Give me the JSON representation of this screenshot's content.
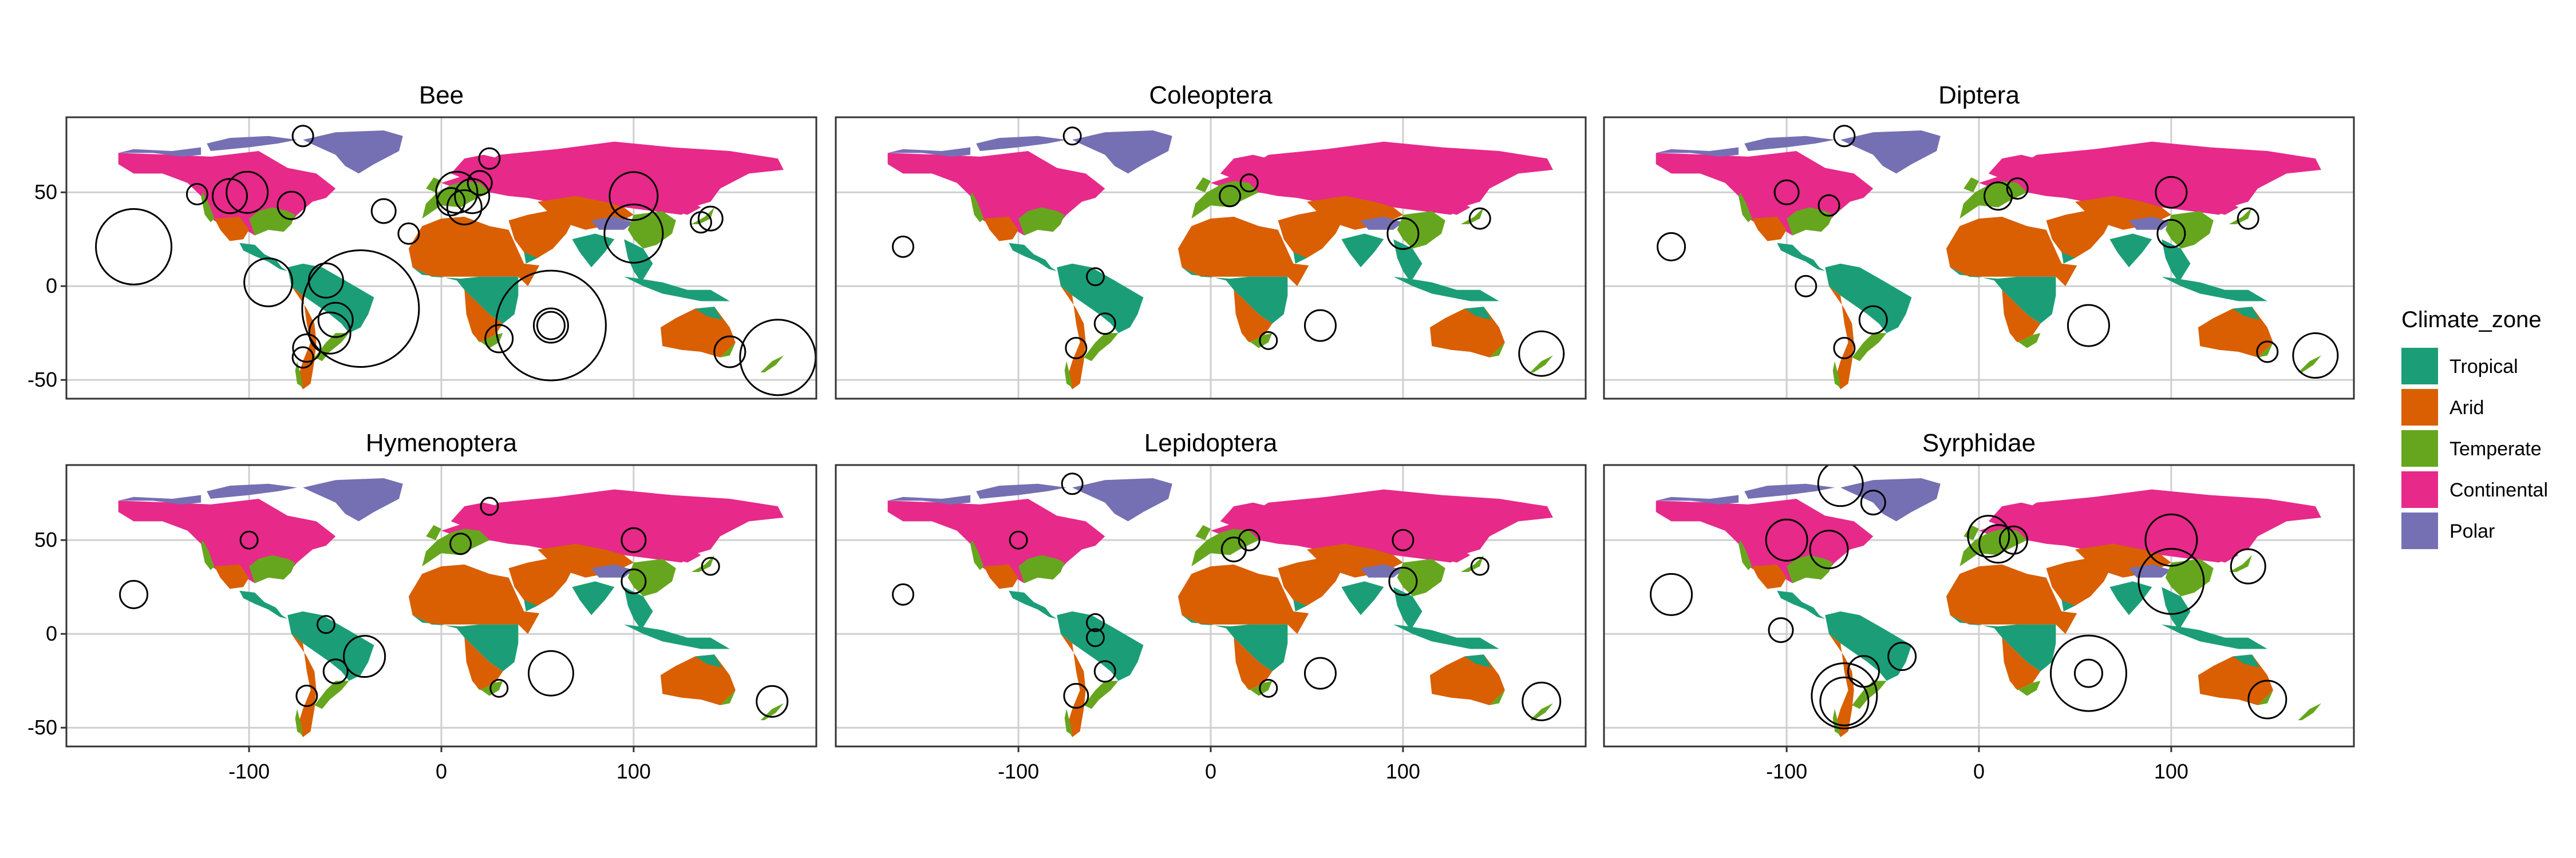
{
  "chart_data": {
    "type": "map",
    "facets": [
      "Bee",
      "Coleoptera",
      "Diptera",
      "Hymenoptera",
      "Lepidoptera",
      "Syrphidae"
    ],
    "x_ticks": [
      -100,
      0,
      100
    ],
    "y_ticks": [
      50,
      0,
      -50
    ],
    "xlim": [
      -195,
      195
    ],
    "ylim": [
      -60,
      90
    ],
    "grid": true,
    "legend": {
      "title": "Climate_zone",
      "position": "right",
      "entries": [
        {
          "label": "Tropical",
          "color": "#1B9E77"
        },
        {
          "label": "Arid",
          "color": "#D95F02"
        },
        {
          "label": "Temperate",
          "color": "#66A61E"
        },
        {
          "label": "Continental",
          "color": "#E7298A"
        },
        {
          "label": "Polar",
          "color": "#7570B3"
        }
      ]
    },
    "point_layers": {
      "Bee": [
        [
          -160,
          21,
          1.0
        ],
        [
          -101,
          50,
          0.5
        ],
        [
          -110,
          48,
          0.4
        ],
        [
          -127,
          49,
          0.2
        ],
        [
          -78,
          43,
          0.3
        ],
        [
          -72,
          80,
          0.2
        ],
        [
          -90,
          2,
          0.6
        ],
        [
          -42,
          -12,
          1.6
        ],
        [
          -58,
          -25,
          0.5
        ],
        [
          -55,
          -18,
          0.4
        ],
        [
          -60,
          3,
          0.4
        ],
        [
          -70,
          -33,
          0.3
        ],
        [
          -72,
          -38,
          0.2
        ],
        [
          -30,
          40,
          0.25
        ],
        [
          -17,
          28,
          0.2
        ],
        [
          8,
          50,
          0.5
        ],
        [
          12,
          42,
          0.4
        ],
        [
          5,
          45,
          0.3
        ],
        [
          16,
          48,
          0.4
        ],
        [
          20,
          55,
          0.25
        ],
        [
          25,
          68,
          0.2
        ],
        [
          30,
          -28,
          0.3
        ],
        [
          57,
          -21,
          1.5
        ],
        [
          57,
          -21,
          0.4
        ],
        [
          57,
          -21,
          0.3
        ],
        [
          100,
          48,
          0.6
        ],
        [
          100,
          28,
          0.75
        ],
        [
          140,
          36,
          0.25
        ],
        [
          135,
          34,
          0.2
        ],
        [
          150,
          -35,
          0.35
        ],
        [
          175,
          -38,
          1.0
        ]
      ],
      "Coleoptera": [
        [
          -160,
          21,
          0.2
        ],
        [
          -72,
          80,
          0.15
        ],
        [
          -60,
          5,
          0.15
        ],
        [
          -55,
          -20,
          0.2
        ],
        [
          -70,
          -33,
          0.2
        ],
        [
          10,
          48,
          0.2
        ],
        [
          20,
          55,
          0.15
        ],
        [
          30,
          -29,
          0.15
        ],
        [
          57,
          -21,
          0.35
        ],
        [
          100,
          28,
          0.35
        ],
        [
          140,
          36,
          0.2
        ],
        [
          172,
          -36,
          0.55
        ]
      ],
      "Diptera": [
        [
          -160,
          21,
          0.3
        ],
        [
          -100,
          50,
          0.25
        ],
        [
          -78,
          43,
          0.2
        ],
        [
          -70,
          80,
          0.2
        ],
        [
          -90,
          0,
          0.2
        ],
        [
          -55,
          -18,
          0.3
        ],
        [
          -70,
          -33,
          0.2
        ],
        [
          10,
          48,
          0.3
        ],
        [
          20,
          52,
          0.2
        ],
        [
          57,
          -21,
          0.5
        ],
        [
          100,
          50,
          0.35
        ],
        [
          100,
          28,
          0.3
        ],
        [
          140,
          36,
          0.2
        ],
        [
          150,
          -35,
          0.2
        ],
        [
          175,
          -37,
          0.55
        ]
      ],
      "Hymenoptera": [
        [
          -160,
          21,
          0.3
        ],
        [
          -100,
          50,
          0.15
        ],
        [
          -60,
          5,
          0.15
        ],
        [
          -40,
          -12,
          0.5
        ],
        [
          -55,
          -20,
          0.25
        ],
        [
          -70,
          -33,
          0.2
        ],
        [
          10,
          48,
          0.2
        ],
        [
          25,
          68,
          0.15
        ],
        [
          30,
          -29,
          0.15
        ],
        [
          57,
          -21,
          0.55
        ],
        [
          100,
          50,
          0.25
        ],
        [
          100,
          28,
          0.25
        ],
        [
          140,
          36,
          0.15
        ],
        [
          172,
          -36,
          0.35
        ]
      ],
      "Lepidoptera": [
        [
          -160,
          21,
          0.2
        ],
        [
          -100,
          50,
          0.15
        ],
        [
          -72,
          80,
          0.2
        ],
        [
          -60,
          -2,
          0.15
        ],
        [
          -60,
          6,
          0.15
        ],
        [
          -55,
          -20,
          0.2
        ],
        [
          -70,
          -33,
          0.25
        ],
        [
          12,
          45,
          0.25
        ],
        [
          20,
          50,
          0.2
        ],
        [
          30,
          -29,
          0.15
        ],
        [
          57,
          -21,
          0.35
        ],
        [
          100,
          50,
          0.2
        ],
        [
          100,
          28,
          0.3
        ],
        [
          140,
          36,
          0.15
        ],
        [
          172,
          -36,
          0.45
        ]
      ],
      "Syrphidae": [
        [
          -160,
          21,
          0.5
        ],
        [
          -100,
          50,
          0.5
        ],
        [
          -78,
          45,
          0.45
        ],
        [
          -72,
          80,
          0.55
        ],
        [
          -55,
          70,
          0.25
        ],
        [
          -103,
          2,
          0.25
        ],
        [
          -40,
          -12,
          0.3
        ],
        [
          -60,
          -20,
          0.35
        ],
        [
          -70,
          -33,
          0.85
        ],
        [
          -70,
          -36,
          0.6
        ],
        [
          5,
          52,
          0.5
        ],
        [
          10,
          48,
          0.45
        ],
        [
          18,
          50,
          0.3
        ],
        [
          57,
          -21,
          1.0
        ],
        [
          57,
          -21,
          0.3
        ],
        [
          100,
          50,
          0.65
        ],
        [
          100,
          28,
          0.85
        ],
        [
          140,
          36,
          0.4
        ],
        [
          150,
          -35,
          0.45
        ]
      ]
    }
  }
}
